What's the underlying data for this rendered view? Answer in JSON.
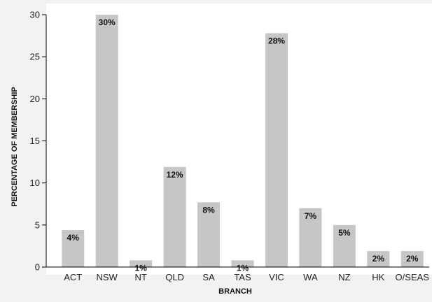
{
  "chart_data": {
    "type": "bar",
    "categories": [
      "ACT",
      "NSW",
      "NT",
      "QLD",
      "SA",
      "TAS",
      "VIC",
      "WA",
      "NZ",
      "HK",
      "O/SEAS"
    ],
    "values": [
      4.4,
      30.0,
      0.8,
      11.9,
      7.7,
      0.8,
      27.8,
      7.0,
      5.0,
      1.9,
      1.9
    ],
    "data_labels": [
      "4%",
      "30%",
      "1%",
      "12%",
      "8%",
      "1%",
      "28%",
      "7%",
      "5%",
      "2%",
      "2%"
    ],
    "xlabel": "BRANCH",
    "ylabel": "PERCENTAGE OF MEMBERSHIP",
    "ylim": [
      0,
      30
    ],
    "yticks": [
      0,
      5,
      10,
      15,
      20,
      25,
      30
    ],
    "grid": false,
    "legend": "none",
    "bar_color": "#c6c6c6",
    "background_color": "#ffffff"
  }
}
